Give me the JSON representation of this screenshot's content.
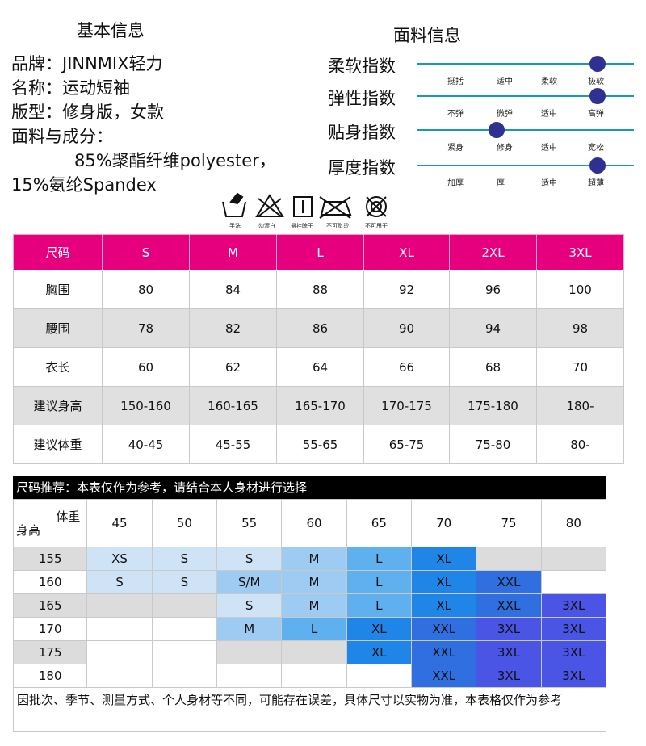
{
  "basic": {
    "heading": "基本信息",
    "lines": [
      "品牌：JINNMIX轻力",
      "名称：运动短袖",
      "版型：修身版，女款",
      "面料与成分："
    ],
    "composition_1": "85%聚酯纤维polyester，",
    "composition_2": "15%氨纶Spandex"
  },
  "fabric": {
    "heading": "面料信息",
    "indices": [
      {
        "label": "柔软指数",
        "ticks": [
          "挺括",
          "适中",
          "柔软",
          "极软"
        ],
        "level": 0.93
      },
      {
        "label": "弹性指数",
        "ticks": [
          "不弹",
          "微弹",
          "适中",
          "高弹"
        ],
        "level": 0.93
      },
      {
        "label": "贴身指数",
        "ticks": [
          "紧身",
          "修身",
          "适中",
          "宽松"
        ],
        "level": 0.41
      },
      {
        "label": "厚度指数",
        "ticks": [
          "加厚",
          "厚",
          "适中",
          "超薄"
        ],
        "level": 0.93
      }
    ]
  },
  "wash": [
    "手洗",
    "勿漂白",
    "悬挂晾干",
    "不可熨烫",
    "不可甩干"
  ],
  "size_table": {
    "rows": [
      [
        "尺码",
        "S",
        "M",
        "L",
        "XL",
        "2XL",
        "3XL"
      ],
      [
        "胸围",
        "80",
        "84",
        "88",
        "92",
        "96",
        "100"
      ],
      [
        "腰围",
        "78",
        "82",
        "86",
        "90",
        "94",
        "98"
      ],
      [
        "衣长",
        "60",
        "62",
        "64",
        "66",
        "68",
        "70"
      ],
      [
        "建议身高",
        "150-160",
        "160-165",
        "165-170",
        "170-175",
        "175-180",
        "180-"
      ],
      [
        "建议体重",
        "40-45",
        "45-55",
        "55-65",
        "65-75",
        "75-80",
        "80-"
      ]
    ]
  },
  "recommend": {
    "title": "尺码推荐：本表仅作为参考，请结合本人身材进行选择",
    "corner_weight": "体重",
    "corner_height": "身高",
    "weights": [
      "45",
      "50",
      "55",
      "60",
      "65",
      "70",
      "75",
      "80"
    ],
    "rows": [
      {
        "height": "155",
        "cells": [
          "XS",
          "S",
          "S",
          "M",
          "L",
          "XL",
          "",
          ""
        ]
      },
      {
        "height": "160",
        "cells": [
          "S",
          "S",
          "S/M",
          "M",
          "L",
          "XL",
          "XXL",
          ""
        ]
      },
      {
        "height": "165",
        "cells": [
          "",
          "",
          "S",
          "M",
          "L",
          "XL",
          "XXL",
          "3XL"
        ]
      },
      {
        "height": "170",
        "cells": [
          "",
          "",
          "M",
          "L",
          "XL",
          "XXL",
          "3XL",
          "3XL"
        ]
      },
      {
        "height": "175",
        "cells": [
          "",
          "",
          "",
          "",
          "XL",
          "XXL",
          "3XL",
          "3XL"
        ]
      },
      {
        "height": "180",
        "cells": [
          "",
          "",
          "",
          "",
          "",
          "XXL",
          "3XL",
          "3XL"
        ]
      }
    ],
    "note": "因批次、季节、测量方式、个人身材等不同，可能存在误差，具体尺寸以实物为准，本表格仅作为参考"
  },
  "colors": {
    "header_pink": "#e6007e",
    "track": "#1a9aa8",
    "knob": "#2e3192",
    "rec_fills": {
      "grey": "#dcdcdc",
      "XS": "#cfe3f7",
      "S": "#cfe3f7",
      "S/M": "#9ecbf2",
      "M": "#9ecbf2",
      "L": "#5fb0ee",
      "XL": "#1f86e8",
      "XXL": "#2f6fe0",
      "3XL": "#4a55e6"
    }
  }
}
